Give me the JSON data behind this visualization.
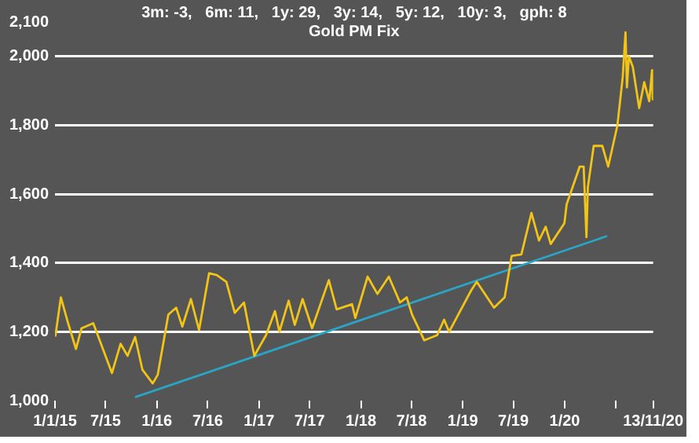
{
  "chart_data": {
    "type": "line",
    "title": "Gold PM Fix",
    "subtitle": "3m: -3,   6m: 11,   1y: 29,   3y: 14,   5y: 12,   10y: 3,   gph: 8",
    "series": [
      {
        "color": "#f2c418",
        "x": [
          "2015-01-02",
          "2015-01-22",
          "2015-02-15",
          "2015-03-17",
          "2015-04-06",
          "2015-05-18",
          "2015-06-10",
          "2015-07-24",
          "2015-08-24",
          "2015-09-18",
          "2015-10-15",
          "2015-11-10",
          "2015-12-17",
          "2016-01-04",
          "2016-02-11",
          "2016-03-10",
          "2016-04-01",
          "2016-05-02",
          "2016-05-31",
          "2016-06-24",
          "2016-07-06",
          "2016-08-02",
          "2016-09-06",
          "2016-10-06",
          "2016-11-08",
          "2016-12-15",
          "2017-01-26",
          "2017-02-27",
          "2017-03-15",
          "2017-04-17",
          "2017-05-09",
          "2017-06-06",
          "2017-07-10",
          "2017-09-08",
          "2017-10-06",
          "2017-11-30",
          "2017-12-12",
          "2018-01-25",
          "2018-03-01",
          "2018-04-11",
          "2018-05-21",
          "2018-06-14",
          "2018-07-03",
          "2018-08-16",
          "2018-10-01",
          "2018-10-26",
          "2018-11-13",
          "2019-01-31",
          "2019-02-20",
          "2019-04-23",
          "2019-05-31",
          "2019-06-25",
          "2019-07-30",
          "2019-09-04",
          "2019-10-01",
          "2019-10-25",
          "2019-11-12",
          "2019-12-31",
          "2020-01-08",
          "2020-02-24",
          "2020-03-09",
          "2020-03-19",
          "2020-03-24",
          "2020-04-14",
          "2020-05-15",
          "2020-06-05",
          "2020-07-08",
          "2020-07-27",
          "2020-08-06",
          "2020-08-11",
          "2020-08-18",
          "2020-09-01",
          "2020-09-24",
          "2020-10-12",
          "2020-10-30",
          "2020-11-09",
          "2020-11-10",
          "2020-11-13"
        ],
        "values": [
          1186,
          1300,
          1230,
          1150,
          1210,
          1225,
          1175,
          1080,
          1165,
          1130,
          1185,
          1090,
          1050,
          1075,
          1250,
          1270,
          1215,
          1295,
          1205,
          1315,
          1370,
          1365,
          1345,
          1255,
          1285,
          1130,
          1190,
          1260,
          1200,
          1290,
          1220,
          1295,
          1210,
          1350,
          1265,
          1280,
          1240,
          1360,
          1310,
          1360,
          1285,
          1300,
          1250,
          1175,
          1190,
          1235,
          1200,
          1320,
          1345,
          1270,
          1300,
          1420,
          1425,
          1545,
          1465,
          1505,
          1455,
          1515,
          1570,
          1680,
          1680,
          1475,
          1620,
          1740,
          1740,
          1680,
          1800,
          1940,
          2070,
          1910,
          2000,
          1970,
          1850,
          1925,
          1870,
          1960,
          1875,
          1890
        ]
      },
      {
        "color": "#2aa5c6",
        "x": [
          "2015-10-15",
          "2020-06-01"
        ],
        "values": [
          1010,
          1478
        ]
      }
    ],
    "xlim": [
      "2015-01-01",
      "2020-11-13"
    ],
    "xticks": [
      {
        "value": "2015-01-01",
        "label": "1/1/15"
      },
      {
        "value": "2015-07-01",
        "label": "7/15"
      },
      {
        "value": "2016-01-01",
        "label": "1/16"
      },
      {
        "value": "2016-07-01",
        "label": "7/16"
      },
      {
        "value": "2017-01-01",
        "label": "1/17"
      },
      {
        "value": "2017-07-01",
        "label": "7/17"
      },
      {
        "value": "2018-01-01",
        "label": "1/18"
      },
      {
        "value": "2018-07-01",
        "label": "7/18"
      },
      {
        "value": "2019-01-01",
        "label": "1/19"
      },
      {
        "value": "2019-07-01",
        "label": "7/19"
      },
      {
        "value": "2020-01-01",
        "label": "1/20"
      },
      {
        "value": "2020-07-01",
        "label": null
      },
      {
        "value": "2020-11-13",
        "label": "13/11/20"
      }
    ],
    "ylim": [
      1000,
      2100
    ],
    "yticks": [
      {
        "value": 1000,
        "label": "1,000"
      },
      {
        "value": 1200,
        "label": "1,200"
      },
      {
        "value": 1400,
        "label": "1,400"
      },
      {
        "value": 1600,
        "label": "1,600"
      },
      {
        "value": 1800,
        "label": "1,800"
      },
      {
        "value": 2000,
        "label": "2,000"
      },
      {
        "value": 2100,
        "label": "2,100"
      }
    ],
    "grid": "y",
    "legend": false,
    "marker": "none",
    "line_style": "solid"
  }
}
